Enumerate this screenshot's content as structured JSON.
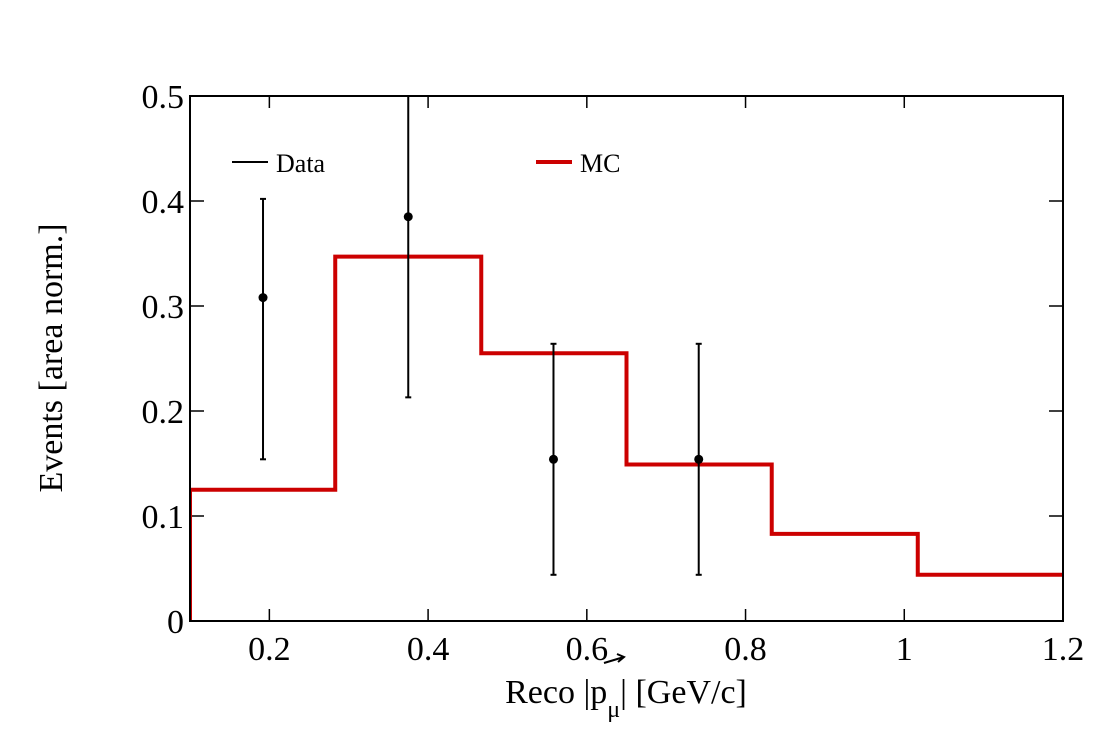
{
  "chart_data": {
    "type": "line",
    "xlabel_prefix": "Reco |",
    "xlabel_symbol": "p",
    "xlabel_subscript": "μ",
    "xlabel_suffix": "| [GeV/c]",
    "ylabel": "Events [area norm.]",
    "xlim": [
      0.1,
      1.2
    ],
    "ylim": [
      0,
      0.5
    ],
    "x_ticks": [
      0.2,
      0.4,
      0.6,
      0.8,
      1,
      1.2
    ],
    "x_tick_labels": [
      "0.2",
      "0.4",
      "0.6",
      "0.8",
      "1",
      "1.2"
    ],
    "y_ticks": [
      0,
      0.1,
      0.2,
      0.3,
      0.4,
      0.5
    ],
    "y_tick_labels": [
      "0",
      "0.1",
      "0.2",
      "0.3",
      "0.4",
      "0.5"
    ],
    "grid": false,
    "legend": [
      {
        "label": "Data",
        "style": "errorbar",
        "color": "#000000"
      },
      {
        "label": "MC",
        "style": "line",
        "color": "#cc0000"
      }
    ],
    "legend_placement": "top",
    "series": [
      {
        "name": "Data",
        "kind": "points-with-errors",
        "color": "#000000",
        "x": [
          0.192,
          0.375,
          0.558,
          0.741
        ],
        "y": [
          0.308,
          0.385,
          0.154,
          0.154
        ],
        "yerr_low": [
          0.154,
          0.213,
          0.044,
          0.044
        ],
        "yerr_high": [
          0.402,
          0.555,
          0.264,
          0.264
        ]
      },
      {
        "name": "MC",
        "kind": "step-histogram",
        "color": "#cc0000",
        "bin_edges": [
          0.1,
          0.283,
          0.467,
          0.65,
          0.833,
          1.017,
          1.2
        ],
        "values": [
          0.125,
          0.347,
          0.255,
          0.149,
          0.083,
          0.044
        ]
      }
    ]
  }
}
